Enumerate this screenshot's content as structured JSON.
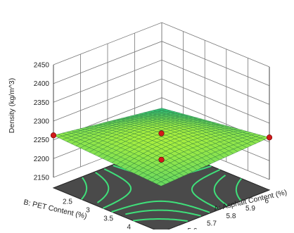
{
  "chart_data": {
    "type": "surface",
    "title": "",
    "zlabel": "Density (kg/m^3)",
    "xlabel": "A: Asphalt Content (%)",
    "ylabel": "B: PET Content  (%)",
    "zlim": [
      2150,
      2450
    ],
    "z_ticks": [
      "2150",
      "2200",
      "2250",
      "2300",
      "2350",
      "2400",
      "2450"
    ],
    "x_ticks": [
      "5.6",
      "5.7",
      "5.8",
      "5.9",
      "6"
    ],
    "y_ticks": [
      "2.5",
      "3",
      "3.5",
      "4"
    ],
    "surface_corner_values": {
      "low_A_low_B": 2222,
      "low_A_high_B": 2262,
      "high_A_low_B": 2262,
      "high_A_high_B": 2245,
      "center": 2270
    },
    "design_points": [
      {
        "label": "center-top",
        "value": 2270
      },
      {
        "label": "center-bottom",
        "value": 2200
      },
      {
        "label": "left-corner",
        "value": 2262
      },
      {
        "label": "right-corner",
        "value": 2262
      }
    ],
    "contour_floor": "saddle contours",
    "colors": {
      "surface_low": "#2ec27e",
      "surface_high": "#a9ef3e",
      "floor": "#4a4a4a",
      "contour": "#3fe07a",
      "point": "#d11a1a"
    }
  }
}
